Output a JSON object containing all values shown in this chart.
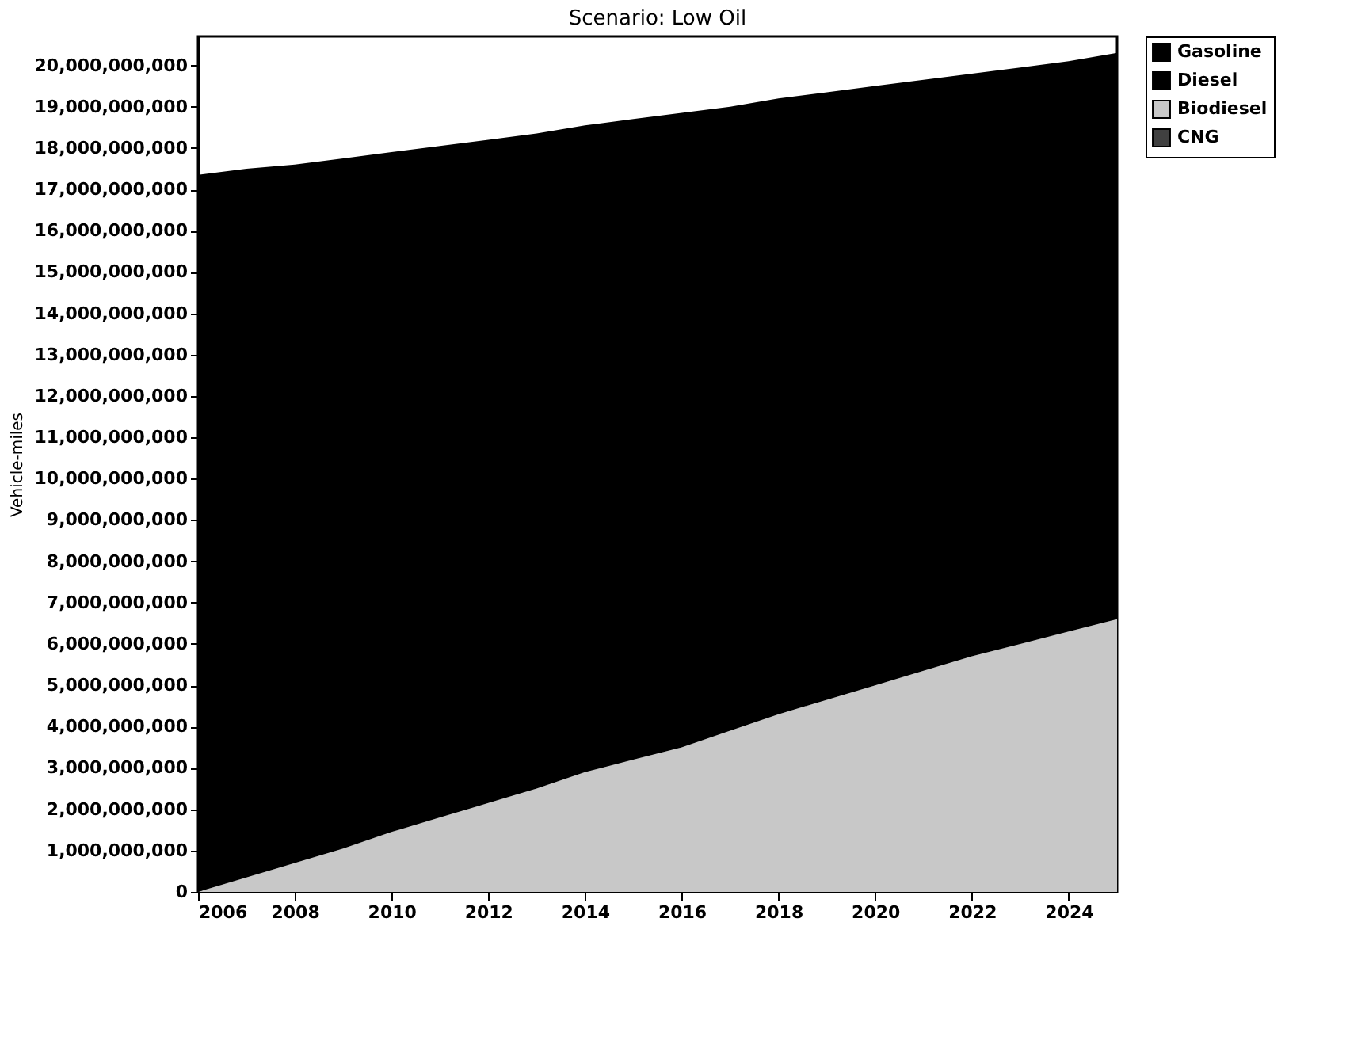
{
  "chart_data": {
    "type": "area",
    "title": "Scenario: Low Oil",
    "ylabel": "Vehicle-miles",
    "stacked": true,
    "x": [
      2006,
      2007,
      2008,
      2009,
      2010,
      2011,
      2012,
      2013,
      2014,
      2015,
      2016,
      2017,
      2018,
      2019,
      2020,
      2021,
      2022,
      2023,
      2024,
      2025
    ],
    "series": [
      {
        "name": "CNG",
        "color": "#404040",
        "values": [
          null,
          null,
          null,
          null,
          null,
          null,
          null,
          null,
          null,
          null,
          null,
          null,
          null,
          null,
          null,
          null,
          null,
          null,
          null,
          null
        ]
      },
      {
        "name": "Biodiesel",
        "color": "#c8c8c8",
        "values": [
          0,
          350000000,
          700000000,
          1050000000,
          1450000000,
          1800000000,
          2150000000,
          2500000000,
          2900000000,
          3200000000,
          3500000000,
          3900000000,
          4300000000,
          4650000000,
          5000000000,
          5350000000,
          5700000000,
          6000000000,
          6300000000,
          6600000000
        ]
      },
      {
        "name": "Diesel",
        "color": "#000000",
        "values": [
          null,
          null,
          null,
          null,
          null,
          null,
          null,
          null,
          null,
          null,
          null,
          null,
          null,
          null,
          null,
          null,
          null,
          null,
          null,
          null
        ]
      },
      {
        "name": "Gasoline",
        "color": "#000000",
        "values": [
          17350000000,
          17150000000,
          16900000000,
          16700000000,
          16450000000,
          16250000000,
          16050000000,
          15850000000,
          15650000000,
          15500000000,
          15350000000,
          15100000000,
          14900000000,
          14700000000,
          14500000000,
          14300000000,
          14100000000,
          13950000000,
          13800000000,
          13700000000
        ]
      }
    ],
    "xlim": [
      2006,
      2025
    ],
    "xticks": [
      2006,
      2008,
      2010,
      2012,
      2014,
      2016,
      2018,
      2020,
      2022,
      2024
    ],
    "ylim": [
      0,
      20700000000
    ],
    "yticks": [
      0,
      {
        "value": 1000000000,
        "label": "1,000,000,000"
      },
      {
        "value": 2000000000,
        "label": "2,000,000,000"
      },
      {
        "value": 3000000000,
        "label": "3,000,000,000"
      },
      {
        "value": 4000000000,
        "label": "4,000,000,000"
      },
      {
        "value": 5000000000,
        "label": "5,000,000,000"
      },
      {
        "value": 6000000000,
        "label": "6,000,000,000"
      },
      {
        "value": 7000000000,
        "label": "7,000,000,000"
      },
      {
        "value": 8000000000,
        "label": "8,000,000,000"
      },
      {
        "value": 9000000000,
        "label": "9,000,000,000"
      },
      {
        "value": 10000000000,
        "label": "10,000,000,000"
      },
      {
        "value": 11000000000,
        "label": "11,000,000,000"
      },
      {
        "value": 12000000000,
        "label": "12,000,000,000"
      },
      {
        "value": 13000000000,
        "label": "13,000,000,000"
      },
      {
        "value": 14000000000,
        "label": "14,000,000,000"
      },
      {
        "value": 15000000000,
        "label": "15,000,000,000"
      },
      {
        "value": 16000000000,
        "label": "16,000,000,000"
      },
      {
        "value": 17000000000,
        "label": "17,000,000,000"
      },
      {
        "value": 18000000000,
        "label": "18,000,000,000"
      },
      {
        "value": 19000000000,
        "label": "19,000,000,000"
      },
      {
        "value": 20000000000,
        "label": "20,000,000,000"
      }
    ],
    "grid": false,
    "legend": "top right"
  }
}
